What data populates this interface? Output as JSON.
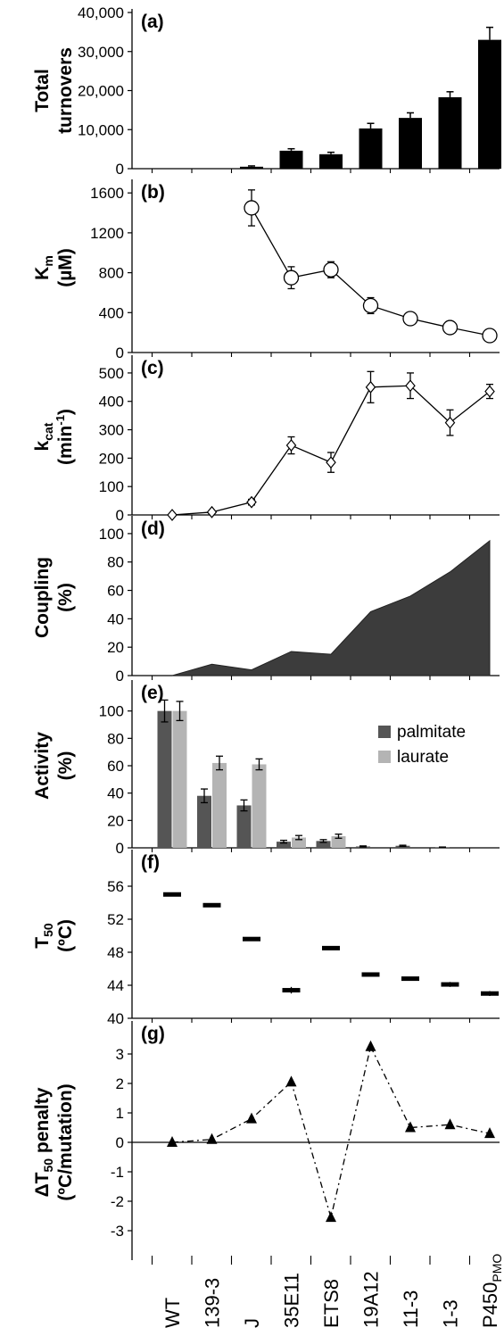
{
  "colors": {
    "bar": "#000000",
    "area": "#3c3c3c",
    "palmitate": "#555555",
    "laurate": "#b4b4b4",
    "axis": "#000000"
  },
  "categories": [
    "WT",
    "139-3",
    "J",
    "35E11",
    "ETS8",
    "19A12",
    "11-3",
    "1-3",
    "P450"
  ],
  "category_subscript": {
    "index": 8,
    "text": "PMO"
  },
  "chart_data": [
    {
      "type": "bar",
      "panel_label": "(a)",
      "ylabel": [
        "Total",
        "turnovers"
      ],
      "ylabel_sub": "",
      "ylim": [
        0,
        40000
      ],
      "yticks": [
        0,
        10000,
        20000,
        30000,
        40000
      ],
      "ytick_labels": [
        "0",
        "10,000",
        "20,000",
        "30,000",
        "40,000"
      ],
      "values": [
        0,
        0,
        500,
        4600,
        3700,
        10300,
        13000,
        18300,
        33000
      ],
      "errors": [
        0,
        0,
        200,
        500,
        500,
        1300,
        1300,
        1400,
        3200
      ]
    },
    {
      "type": "line",
      "marker": "circle",
      "panel_label": "(b)",
      "ylabel": [
        "K",
        "(µM)"
      ],
      "ylabel_sub": "m",
      "ylim": [
        0,
        1700
      ],
      "yticks": [
        0,
        400,
        800,
        1200,
        1600
      ],
      "ytick_labels": [
        "0",
        "400",
        "800",
        "1200",
        "1600"
      ],
      "values": [
        null,
        null,
        1450,
        750,
        830,
        470,
        340,
        250,
        170
      ],
      "errors": [
        0,
        0,
        180,
        110,
        80,
        80,
        50,
        40,
        40
      ]
    },
    {
      "type": "line",
      "marker": "diamond",
      "panel_label": "(c)",
      "ylabel": [
        "k",
        "(min-1)"
      ],
      "ylabel_sub": "cat",
      "ylim": [
        0,
        550
      ],
      "yticks": [
        0,
        100,
        200,
        300,
        400,
        500
      ],
      "ytick_labels": [
        "0",
        "100",
        "200",
        "300",
        "400",
        "500"
      ],
      "values": [
        0,
        10,
        45,
        245,
        185,
        450,
        455,
        325,
        435
      ],
      "errors": [
        0,
        0,
        10,
        30,
        35,
        55,
        45,
        45,
        25
      ]
    },
    {
      "type": "area",
      "panel_label": "(d)",
      "ylabel": [
        "Coupling",
        "(%)"
      ],
      "ylabel_sub": "",
      "ylim": [
        0,
        110
      ],
      "yticks": [
        0,
        20,
        40,
        60,
        80,
        100
      ],
      "ytick_labels": [
        "0",
        "20",
        "40",
        "60",
        "80",
        "100"
      ],
      "values": [
        0,
        8,
        4,
        17,
        15,
        45,
        56,
        73,
        95
      ]
    },
    {
      "type": "bar",
      "panel_label": "(e)",
      "ylabel": [
        "Activity",
        "(%)"
      ],
      "ylabel_sub": "",
      "ylim": [
        0,
        120
      ],
      "yticks": [
        0,
        20,
        40,
        60,
        80,
        100
      ],
      "ytick_labels": [
        "0",
        "20",
        "40",
        "60",
        "80",
        "100"
      ],
      "legend": [
        "palmitate",
        "laurate"
      ],
      "series": [
        {
          "name": "palmitate",
          "values": [
            100,
            38,
            31,
            4.5,
            5,
            1,
            1.5,
            0.4,
            null
          ],
          "errors": [
            8,
            5,
            4,
            1,
            1,
            0.4,
            0.4,
            0.2,
            0
          ]
        },
        {
          "name": "laurate",
          "values": [
            100,
            62,
            61,
            7.5,
            8.5,
            null,
            null,
            null,
            null
          ],
          "errors": [
            7,
            5,
            4,
            1.5,
            1.5,
            0,
            0,
            0,
            0
          ]
        }
      ]
    },
    {
      "type": "scatter",
      "marker": "dash",
      "panel_label": "(f)",
      "ylabel": [
        "T",
        "(ºC)"
      ],
      "ylabel_sub": "50",
      "ylim": [
        40,
        60
      ],
      "yticks": [
        40,
        44,
        48,
        52,
        56
      ],
      "ytick_labels": [
        "40",
        "44",
        "48",
        "52",
        "56"
      ],
      "values": [
        55,
        53.7,
        49.6,
        43.4,
        48.5,
        45.3,
        44.8,
        44.1,
        43
      ],
      "errors": [
        0.2,
        0.2,
        0.2,
        0.4,
        0.2,
        0.2,
        0.2,
        0.3,
        0.3
      ]
    },
    {
      "type": "line",
      "marker": "triangle",
      "panel_label": "(g)",
      "ylabel": [
        "ΔT",
        "penalty",
        "(ºC/mutation)"
      ],
      "ylabel_sub": "50",
      "ylim": [
        -4,
        4
      ],
      "yticks": [
        -3,
        -2,
        -1,
        0,
        1,
        2,
        3
      ],
      "ytick_labels": [
        "-3",
        "-2",
        "-1",
        "0",
        "1",
        "2",
        "3"
      ],
      "values": [
        0,
        0.1,
        0.8,
        2.05,
        -2.55,
        3.25,
        0.5,
        0.6,
        0.3
      ]
    }
  ]
}
